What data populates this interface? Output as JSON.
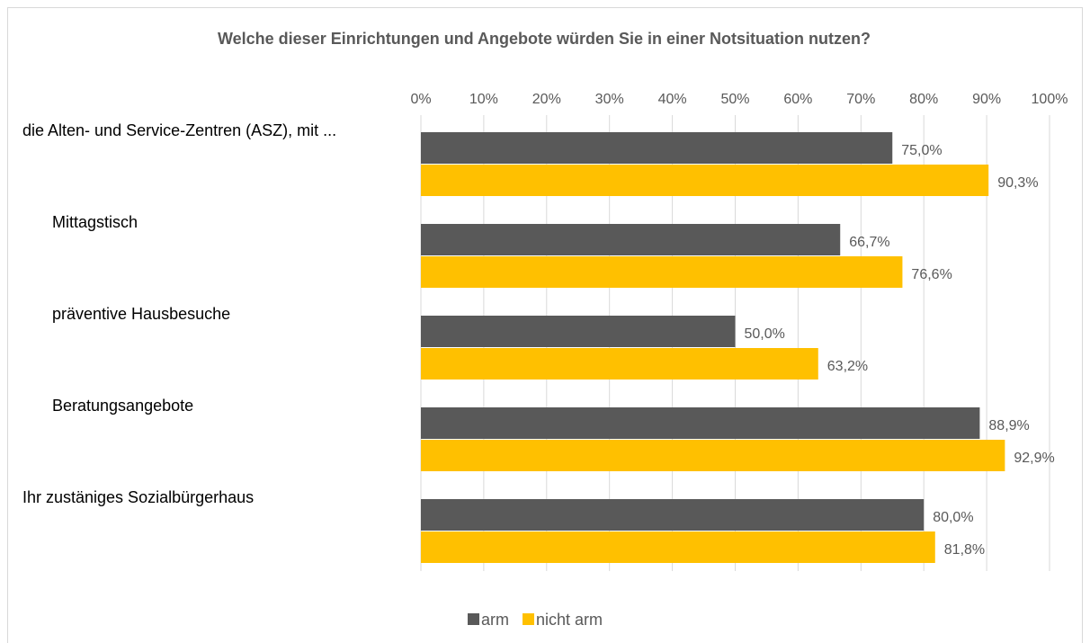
{
  "chart_data": {
    "type": "hbar",
    "title": "Welche dieser Einrichtungen und Angebote würden Sie in einer Notsituation nutzen?",
    "categories": [
      "die Alten- und Service-Zentren (ASZ), mit ...",
      "Mittagstisch",
      "präventive Hausbesuche",
      "Beratungsangebote",
      "Ihr zustäniges Sozialbürgerhaus"
    ],
    "series": [
      {
        "name": "arm",
        "color": "#595959",
        "values": [
          75.0,
          66.7,
          50.0,
          88.9,
          80.0
        ],
        "value_labels": [
          "75,0%",
          "66,7%",
          "50,0%",
          "88,9%",
          "80,0%"
        ]
      },
      {
        "name": "nicht arm",
        "color": "#ffc000",
        "values": [
          90.3,
          76.6,
          63.2,
          92.9,
          81.8
        ],
        "value_labels": [
          "90,3%",
          "76,6%",
          "63,2%",
          "92,9%",
          "81,8%"
        ]
      }
    ],
    "xlim": [
      0,
      100
    ],
    "xticks": [
      {
        "value": 0,
        "label": "0%"
      },
      {
        "value": 10,
        "label": "10%"
      },
      {
        "value": 20,
        "label": "20%"
      },
      {
        "value": 30,
        "label": "30%"
      },
      {
        "value": 40,
        "label": "40%"
      },
      {
        "value": 50,
        "label": "50%"
      },
      {
        "value": 60,
        "label": "60%"
      },
      {
        "value": 70,
        "label": "70%"
      },
      {
        "value": 80,
        "label": "80%"
      },
      {
        "value": 90,
        "label": "90%"
      },
      {
        "value": 100,
        "label": "100%"
      }
    ],
    "grid": true,
    "legend": "bottom"
  }
}
